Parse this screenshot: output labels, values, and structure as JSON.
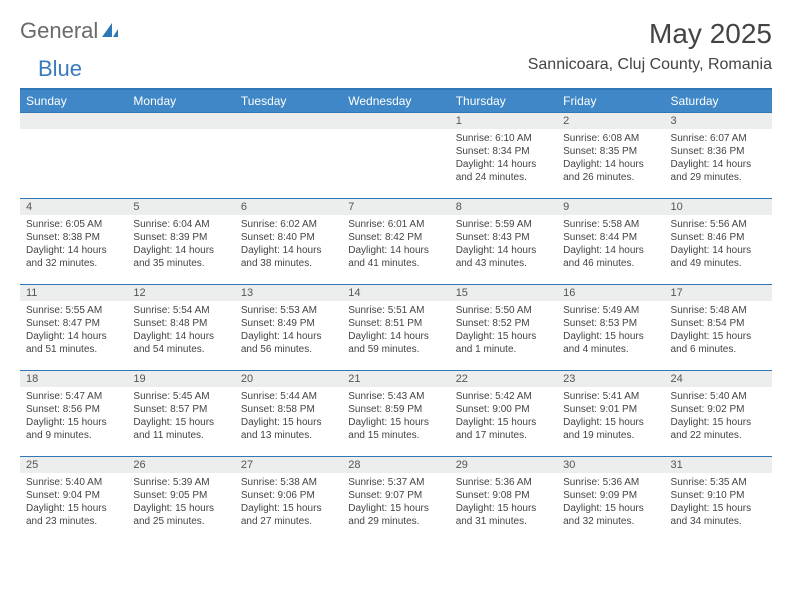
{
  "brand": {
    "general": "General",
    "blue": "Blue"
  },
  "title": "May 2025",
  "location": "Sannicoara, Cluj County, Romania",
  "colors": {
    "accent": "#3f87c6",
    "accent_border": "#2f77b5",
    "daynum_bg": "#eceded",
    "text": "#444444",
    "logo_gray": "#6a6a6a",
    "logo_blue": "#3a7bbf"
  },
  "days_of_week": [
    "Sunday",
    "Monday",
    "Tuesday",
    "Wednesday",
    "Thursday",
    "Friday",
    "Saturday"
  ],
  "weeks": [
    [
      null,
      null,
      null,
      null,
      {
        "n": "1",
        "sr": "6:10 AM",
        "ss": "8:34 PM",
        "dl": "14 hours and 24 minutes."
      },
      {
        "n": "2",
        "sr": "6:08 AM",
        "ss": "8:35 PM",
        "dl": "14 hours and 26 minutes."
      },
      {
        "n": "3",
        "sr": "6:07 AM",
        "ss": "8:36 PM",
        "dl": "14 hours and 29 minutes."
      }
    ],
    [
      {
        "n": "4",
        "sr": "6:05 AM",
        "ss": "8:38 PM",
        "dl": "14 hours and 32 minutes."
      },
      {
        "n": "5",
        "sr": "6:04 AM",
        "ss": "8:39 PM",
        "dl": "14 hours and 35 minutes."
      },
      {
        "n": "6",
        "sr": "6:02 AM",
        "ss": "8:40 PM",
        "dl": "14 hours and 38 minutes."
      },
      {
        "n": "7",
        "sr": "6:01 AM",
        "ss": "8:42 PM",
        "dl": "14 hours and 41 minutes."
      },
      {
        "n": "8",
        "sr": "5:59 AM",
        "ss": "8:43 PM",
        "dl": "14 hours and 43 minutes."
      },
      {
        "n": "9",
        "sr": "5:58 AM",
        "ss": "8:44 PM",
        "dl": "14 hours and 46 minutes."
      },
      {
        "n": "10",
        "sr": "5:56 AM",
        "ss": "8:46 PM",
        "dl": "14 hours and 49 minutes."
      }
    ],
    [
      {
        "n": "11",
        "sr": "5:55 AM",
        "ss": "8:47 PM",
        "dl": "14 hours and 51 minutes."
      },
      {
        "n": "12",
        "sr": "5:54 AM",
        "ss": "8:48 PM",
        "dl": "14 hours and 54 minutes."
      },
      {
        "n": "13",
        "sr": "5:53 AM",
        "ss": "8:49 PM",
        "dl": "14 hours and 56 minutes."
      },
      {
        "n": "14",
        "sr": "5:51 AM",
        "ss": "8:51 PM",
        "dl": "14 hours and 59 minutes."
      },
      {
        "n": "15",
        "sr": "5:50 AM",
        "ss": "8:52 PM",
        "dl": "15 hours and 1 minute."
      },
      {
        "n": "16",
        "sr": "5:49 AM",
        "ss": "8:53 PM",
        "dl": "15 hours and 4 minutes."
      },
      {
        "n": "17",
        "sr": "5:48 AM",
        "ss": "8:54 PM",
        "dl": "15 hours and 6 minutes."
      }
    ],
    [
      {
        "n": "18",
        "sr": "5:47 AM",
        "ss": "8:56 PM",
        "dl": "15 hours and 9 minutes."
      },
      {
        "n": "19",
        "sr": "5:45 AM",
        "ss": "8:57 PM",
        "dl": "15 hours and 11 minutes."
      },
      {
        "n": "20",
        "sr": "5:44 AM",
        "ss": "8:58 PM",
        "dl": "15 hours and 13 minutes."
      },
      {
        "n": "21",
        "sr": "5:43 AM",
        "ss": "8:59 PM",
        "dl": "15 hours and 15 minutes."
      },
      {
        "n": "22",
        "sr": "5:42 AM",
        "ss": "9:00 PM",
        "dl": "15 hours and 17 minutes."
      },
      {
        "n": "23",
        "sr": "5:41 AM",
        "ss": "9:01 PM",
        "dl": "15 hours and 19 minutes."
      },
      {
        "n": "24",
        "sr": "5:40 AM",
        "ss": "9:02 PM",
        "dl": "15 hours and 22 minutes."
      }
    ],
    [
      {
        "n": "25",
        "sr": "5:40 AM",
        "ss": "9:04 PM",
        "dl": "15 hours and 23 minutes."
      },
      {
        "n": "26",
        "sr": "5:39 AM",
        "ss": "9:05 PM",
        "dl": "15 hours and 25 minutes."
      },
      {
        "n": "27",
        "sr": "5:38 AM",
        "ss": "9:06 PM",
        "dl": "15 hours and 27 minutes."
      },
      {
        "n": "28",
        "sr": "5:37 AM",
        "ss": "9:07 PM",
        "dl": "15 hours and 29 minutes."
      },
      {
        "n": "29",
        "sr": "5:36 AM",
        "ss": "9:08 PM",
        "dl": "15 hours and 31 minutes."
      },
      {
        "n": "30",
        "sr": "5:36 AM",
        "ss": "9:09 PM",
        "dl": "15 hours and 32 minutes."
      },
      {
        "n": "31",
        "sr": "5:35 AM",
        "ss": "9:10 PM",
        "dl": "15 hours and 34 minutes."
      }
    ]
  ],
  "labels": {
    "sunrise": "Sunrise:",
    "sunset": "Sunset:",
    "daylight": "Daylight:"
  }
}
